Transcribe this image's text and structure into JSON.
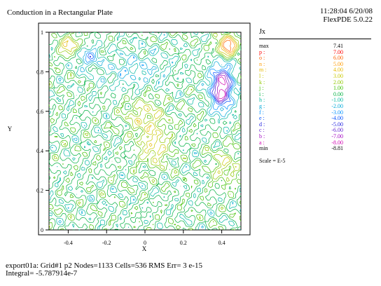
{
  "header": {
    "title": "Conduction in a Rectangular Plate",
    "time": "11:28:04 6/20/08",
    "version": "FlexPDE 5.0.22"
  },
  "footer": {
    "line1": "export01a:  Grid#1  p2  Nodes=1133 Cells=536 RMS Err= 3 e-15",
    "line2": "Integral= -5.787914e-7"
  },
  "chart_data": {
    "type": "contour",
    "title": "",
    "xlabel": "X",
    "ylabel": "Y",
    "xlim": [
      -0.5,
      0.5
    ],
    "ylim": [
      0,
      1
    ],
    "xticks": [
      {
        "v": -0.4,
        "label": "-0.4"
      },
      {
        "v": -0.2,
        "label": "-0.2"
      },
      {
        "v": 0,
        "label": "0"
      },
      {
        "v": 0.2,
        "label": "0.2"
      },
      {
        "v": 0.4,
        "label": "0.4"
      }
    ],
    "yticks": [
      {
        "v": 0,
        "label": "0"
      },
      {
        "v": 0.2,
        "label": "0.2"
      },
      {
        "v": 0.4,
        "label": "0.4"
      },
      {
        "v": 0.6,
        "label": "0.6"
      },
      {
        "v": 0.8,
        "label": "0.8"
      },
      {
        "v": 1,
        "label": "1"
      }
    ],
    "variable": "Jx",
    "max": "7.41",
    "min": "-8.81",
    "scale": "Scale = E-5",
    "levels": [
      {
        "label": "p :",
        "value": "7.00",
        "color": "#ff0000"
      },
      {
        "label": "o :",
        "value": "6.00",
        "color": "#ff6000"
      },
      {
        "label": "n :",
        "value": "5.00",
        "color": "#ff9a00"
      },
      {
        "label": "m :",
        "value": "4.00",
        "color": "#e8b800"
      },
      {
        "label": "l :",
        "value": "3.00",
        "color": "#c8c800"
      },
      {
        "label": "k :",
        "value": "2.00",
        "color": "#90c800"
      },
      {
        "label": "j :",
        "value": "1.00",
        "color": "#40c000"
      },
      {
        "label": "i :",
        "value": "0.00",
        "color": "#00b040"
      },
      {
        "label": "h :",
        "value": "-1.00",
        "color": "#00b8a0"
      },
      {
        "label": "g :",
        "value": "-2.00",
        "color": "#00a8d8"
      },
      {
        "label": "f :",
        "value": "-3.00",
        "color": "#0090ff"
      },
      {
        "label": "e :",
        "value": "-4.00",
        "color": "#0050ff"
      },
      {
        "label": "d :",
        "value": "-5.00",
        "color": "#2020e0"
      },
      {
        "label": "c :",
        "value": "-6.00",
        "color": "#6020d0"
      },
      {
        "label": "b :",
        "value": "-7.00",
        "color": "#a000c0"
      },
      {
        "label": "a :",
        "value": "-8.00",
        "color": "#d000b0"
      }
    ]
  }
}
